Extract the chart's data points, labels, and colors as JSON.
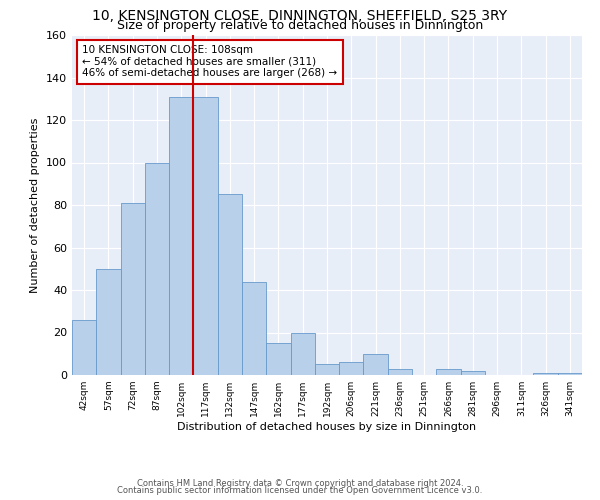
{
  "title": "10, KENSINGTON CLOSE, DINNINGTON, SHEFFIELD, S25 3RY",
  "subtitle": "Size of property relative to detached houses in Dinnington",
  "xlabel": "Distribution of detached houses by size in Dinnington",
  "ylabel": "Number of detached properties",
  "categories": [
    "42sqm",
    "57sqm",
    "72sqm",
    "87sqm",
    "102sqm",
    "117sqm",
    "132sqm",
    "147sqm",
    "162sqm",
    "177sqm",
    "192sqm",
    "206sqm",
    "221sqm",
    "236sqm",
    "251sqm",
    "266sqm",
    "281sqm",
    "296sqm",
    "311sqm",
    "326sqm",
    "341sqm"
  ],
  "values": [
    26,
    50,
    81,
    100,
    131,
    131,
    85,
    44,
    15,
    20,
    5,
    6,
    10,
    3,
    0,
    3,
    2,
    0,
    0,
    1,
    1
  ],
  "bar_color": "#b8d0ea",
  "bar_edge_color": "#6699cc",
  "vline_color": "#cc0000",
  "annotation_title": "10 KENSINGTON CLOSE: 108sqm",
  "annotation_line1": "← 54% of detached houses are smaller (311)",
  "annotation_line2": "46% of semi-detached houses are larger (268) →",
  "annotation_box_color": "#cc0000",
  "ylim": [
    0,
    160
  ],
  "yticks": [
    0,
    20,
    40,
    60,
    80,
    100,
    120,
    140,
    160
  ],
  "bg_color": "#e8eef8",
  "footer1": "Contains HM Land Registry data © Crown copyright and database right 2024.",
  "footer2": "Contains public sector information licensed under the Open Government Licence v3.0.",
  "title_fontsize": 10,
  "subtitle_fontsize": 9
}
